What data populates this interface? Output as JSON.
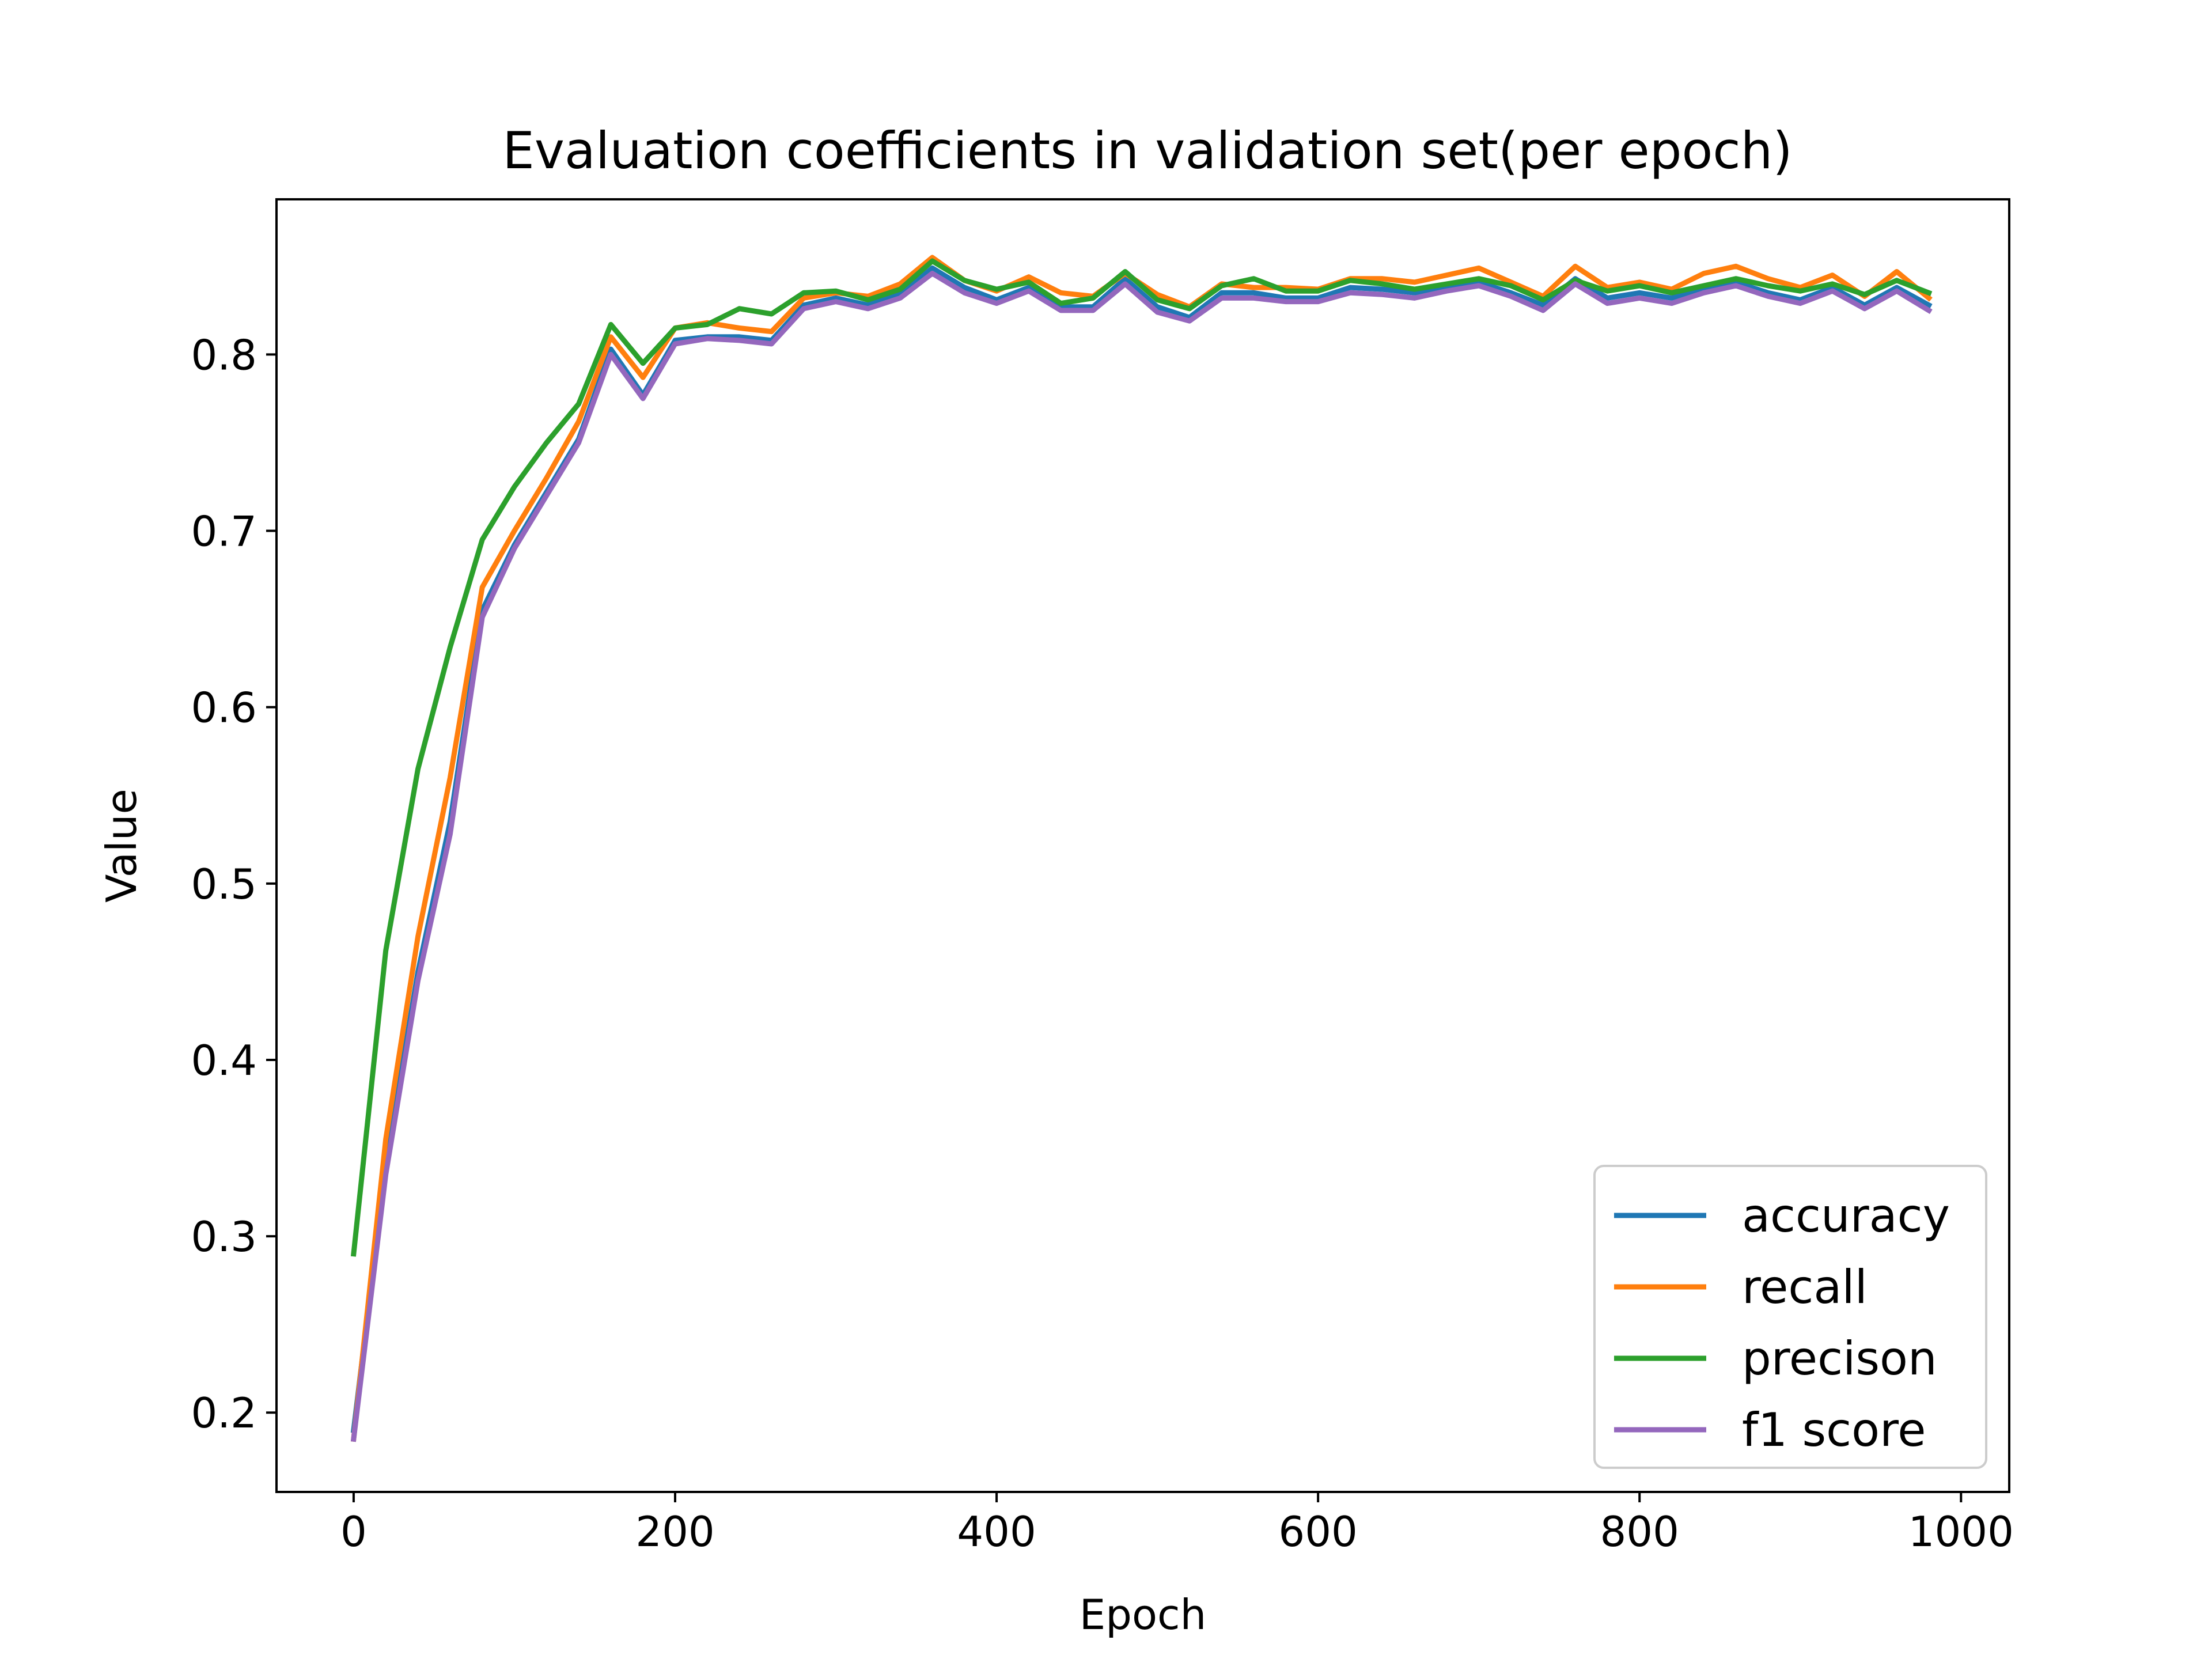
{
  "chart_data": {
    "type": "line",
    "title": "Evaluation coefficients in validation set(per epoch)",
    "xlabel": "Epoch",
    "ylabel": "Value",
    "xlim": [
      -48,
      1030
    ],
    "ylim": [
      0.155,
      0.888
    ],
    "xticks": [
      0,
      200,
      400,
      600,
      800,
      1000
    ],
    "xtick_labels": [
      "0",
      "200",
      "400",
      "600",
      "800",
      "1000"
    ],
    "yticks": [
      0.2,
      0.3,
      0.4,
      0.5,
      0.6,
      0.7,
      0.8
    ],
    "ytick_labels": [
      "0.2",
      "0.3",
      "0.4",
      "0.5",
      "0.6",
      "0.7",
      "0.8"
    ],
    "legend_position": "lower-right",
    "grid": false,
    "x": [
      0,
      20,
      40,
      60,
      80,
      100,
      120,
      140,
      160,
      180,
      200,
      220,
      240,
      260,
      280,
      300,
      320,
      340,
      360,
      380,
      400,
      420,
      440,
      460,
      480,
      500,
      520,
      540,
      560,
      580,
      600,
      620,
      640,
      660,
      680,
      700,
      720,
      740,
      760,
      780,
      800,
      820,
      840,
      860,
      880,
      900,
      920,
      940,
      960,
      980
    ],
    "series": [
      {
        "name": "accuracy",
        "color": "#1f77b4",
        "values": [
          0.19,
          0.34,
          0.45,
          0.535,
          0.655,
          0.692,
          0.722,
          0.752,
          0.803,
          0.777,
          0.808,
          0.81,
          0.81,
          0.808,
          0.828,
          0.832,
          0.828,
          0.834,
          0.849,
          0.838,
          0.831,
          0.838,
          0.827,
          0.827,
          0.843,
          0.827,
          0.821,
          0.835,
          0.835,
          0.832,
          0.832,
          0.838,
          0.837,
          0.835,
          0.838,
          0.841,
          0.835,
          0.828,
          0.843,
          0.832,
          0.835,
          0.832,
          0.837,
          0.841,
          0.835,
          0.831,
          0.838,
          0.828,
          0.838,
          0.828
        ]
      },
      {
        "name": "recall",
        "color": "#ff7f0e",
        "values": [
          0.185,
          0.355,
          0.47,
          0.56,
          0.668,
          0.7,
          0.73,
          0.762,
          0.81,
          0.787,
          0.815,
          0.818,
          0.815,
          0.813,
          0.832,
          0.835,
          0.833,
          0.84,
          0.855,
          0.842,
          0.836,
          0.844,
          0.835,
          0.833,
          0.846,
          0.834,
          0.827,
          0.84,
          0.838,
          0.838,
          0.837,
          0.843,
          0.843,
          0.841,
          0.845,
          0.849,
          0.841,
          0.833,
          0.85,
          0.838,
          0.841,
          0.837,
          0.846,
          0.85,
          0.843,
          0.838,
          0.845,
          0.833,
          0.847,
          0.832
        ]
      },
      {
        "name": "precison",
        "color": "#2ca02c",
        "values": [
          0.29,
          0.462,
          0.565,
          0.634,
          0.695,
          0.725,
          0.75,
          0.772,
          0.817,
          0.795,
          0.815,
          0.817,
          0.826,
          0.823,
          0.835,
          0.836,
          0.831,
          0.837,
          0.853,
          0.842,
          0.837,
          0.841,
          0.829,
          0.832,
          0.847,
          0.831,
          0.826,
          0.839,
          0.843,
          0.836,
          0.836,
          0.842,
          0.84,
          0.837,
          0.84,
          0.843,
          0.839,
          0.831,
          0.842,
          0.836,
          0.839,
          0.835,
          0.839,
          0.843,
          0.839,
          0.836,
          0.84,
          0.834,
          0.842,
          0.835
        ]
      },
      {
        "name": "f1 score",
        "color": "#9467bd",
        "values": [
          0.185,
          0.335,
          0.445,
          0.528,
          0.651,
          0.69,
          0.72,
          0.75,
          0.8,
          0.775,
          0.806,
          0.809,
          0.808,
          0.806,
          0.826,
          0.83,
          0.826,
          0.832,
          0.846,
          0.835,
          0.829,
          0.836,
          0.825,
          0.825,
          0.84,
          0.824,
          0.819,
          0.832,
          0.832,
          0.83,
          0.83,
          0.835,
          0.834,
          0.832,
          0.836,
          0.839,
          0.833,
          0.825,
          0.84,
          0.829,
          0.832,
          0.829,
          0.835,
          0.839,
          0.833,
          0.829,
          0.836,
          0.826,
          0.836,
          0.825
        ]
      }
    ]
  }
}
